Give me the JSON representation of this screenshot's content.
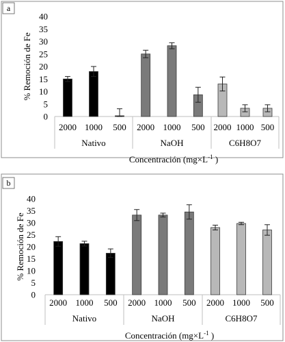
{
  "chart_data": [
    {
      "type": "bar",
      "panel_label": "a",
      "ylabel": "% Remoción de Fe",
      "xlabel": "Concentración (mg×L",
      "xlabel_sup": "-1",
      "xlabel_tail": " )",
      "ylim": [
        0,
        40
      ],
      "yticks": [
        "0",
        "5",
        "10",
        "15",
        "20",
        "25",
        "30",
        "35",
        "40"
      ],
      "groups": [
        {
          "name": "Nativo",
          "color": "#000000",
          "categories": [
            "2000",
            "1000",
            "500"
          ],
          "values": [
            15,
            18,
            0.3
          ],
          "errors": [
            1.0,
            2.0,
            2.8
          ]
        },
        {
          "name": "NaOH",
          "color": "#7a7a7a",
          "categories": [
            "2000",
            "1000",
            "500"
          ],
          "values": [
            25,
            28.3,
            8.7
          ],
          "errors": [
            1.5,
            1.2,
            3.0
          ]
        },
        {
          "name": "C6H8O7",
          "color": "#b8b8b8",
          "categories": [
            "2000",
            "1000",
            "500"
          ],
          "values": [
            13,
            3.3,
            3.3
          ],
          "errors": [
            2.8,
            1.4,
            1.4
          ]
        }
      ]
    },
    {
      "type": "bar",
      "panel_label": "b",
      "ylabel": "% Remoción de Fe",
      "xlabel": "Concentración (mg×L",
      "xlabel_sup": "-1",
      "xlabel_tail": " )",
      "ylim": [
        0,
        40
      ],
      "yticks": [
        "0",
        "5",
        "10",
        "15",
        "20",
        "25",
        "30",
        "35",
        "40"
      ],
      "groups": [
        {
          "name": "Nativo",
          "color": "#000000",
          "categories": [
            "2000",
            "1000",
            "500"
          ],
          "values": [
            22.2,
            21.3,
            17.3
          ],
          "errors": [
            2.0,
            1.0,
            1.8
          ]
        },
        {
          "name": "NaOH",
          "color": "#7a7a7a",
          "categories": [
            "2000",
            "1000",
            "500"
          ],
          "values": [
            33.2,
            33.2,
            34.5
          ],
          "errors": [
            2.3,
            0.8,
            3.0
          ]
        },
        {
          "name": "C6H8O7",
          "color": "#b8b8b8",
          "categories": [
            "2000",
            "1000",
            "500"
          ],
          "values": [
            28,
            29.7,
            27
          ],
          "errors": [
            1.0,
            0.5,
            2.2
          ]
        }
      ]
    }
  ]
}
